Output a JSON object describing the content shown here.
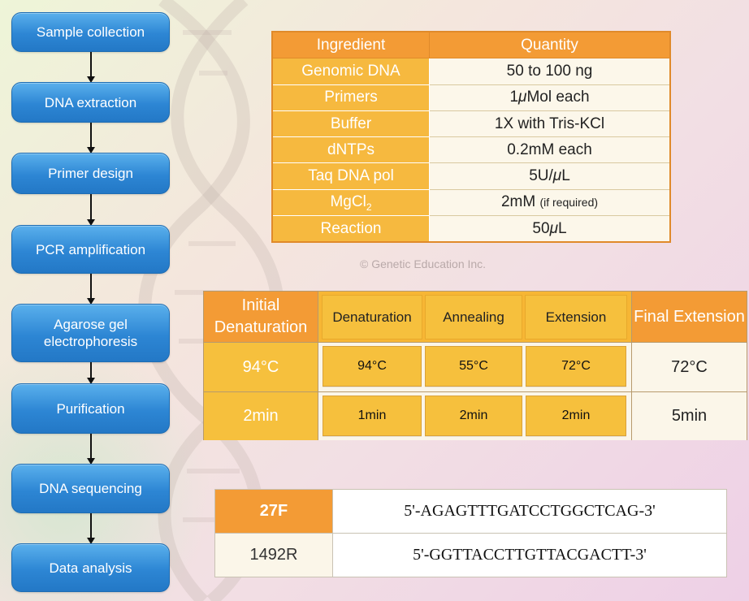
{
  "workflow": {
    "steps": [
      "Sample collection",
      "DNA extraction",
      "Primer design",
      "PCR amplification",
      "Agarose gel electrophoresis",
      "Purification",
      "DNA sequencing",
      "Data analysis"
    ]
  },
  "ingredients": {
    "header_ingredient": "Ingredient",
    "header_quantity": "Quantity",
    "rows": [
      {
        "name": "Genomic DNA",
        "qty": "50 to 100 ng"
      },
      {
        "name": "Primers",
        "qty_pre": "1",
        "qty_mu": "μ",
        "qty_post": "Mol each"
      },
      {
        "name": "Buffer",
        "qty": "1X with Tris-KCl"
      },
      {
        "name": "dNTPs",
        "qty": "0.2mM each"
      },
      {
        "name": "Taq DNA pol",
        "qty_pre": "5U/",
        "qty_mu": "μ",
        "qty_post": "L"
      },
      {
        "name_pre": "MgCl",
        "name_sub": "2",
        "qty": "2mM",
        "qty_note": "(if required)"
      },
      {
        "name": "Reaction",
        "qty_pre": "50",
        "qty_mu": "μ",
        "qty_post": "L"
      }
    ]
  },
  "watermark": "© Genetic Education Inc.",
  "pcr_program": {
    "headers": [
      "Initial Denaturation",
      "Denaturation",
      "Annealing",
      "Extension",
      "Final Extension"
    ],
    "temperature": [
      "94°C",
      "94°C",
      "55°C",
      "72°C",
      "72°C"
    ],
    "time": [
      "2min",
      "1min",
      "2min",
      "2min",
      "5min"
    ]
  },
  "primers": [
    {
      "name": "27F",
      "sequence": "5'-AGAGTTTGATCCTGGCTCAG-3'"
    },
    {
      "name": "1492R",
      "sequence": "5'-GGTTACCTTGTTACGACTT-3'"
    }
  ],
  "colors": {
    "flow_blue": "#2d86d4",
    "header_orange": "#f39b35",
    "cell_yellow": "#f6c03d",
    "cream": "#fbf6e9"
  }
}
